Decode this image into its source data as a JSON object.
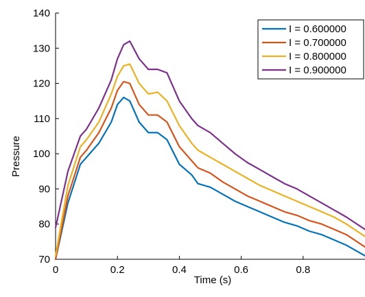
{
  "chart_data": {
    "type": "line",
    "title": "",
    "xlabel": "Time (s)",
    "ylabel": "Pressure",
    "xlim": [
      0,
      1.0
    ],
    "ylim": [
      70,
      140
    ],
    "xticks": [
      0,
      0.2,
      0.4,
      0.6,
      0.8
    ],
    "xtick_labels": [
      "0",
      "0.2",
      "0.4",
      "0.6",
      "0.8"
    ],
    "yticks": [
      70,
      80,
      90,
      100,
      110,
      120,
      130,
      140
    ],
    "ytick_labels": [
      "70",
      "80",
      "90",
      "100",
      "110",
      "120",
      "130",
      "140"
    ],
    "grid": false,
    "legend_position": "top-right",
    "series": [
      {
        "name": "I = 0.600000",
        "color": "#0072BD",
        "x": [
          0,
          0.04,
          0.08,
          0.1,
          0.14,
          0.18,
          0.2,
          0.22,
          0.24,
          0.27,
          0.3,
          0.33,
          0.36,
          0.4,
          0.44,
          0.46,
          0.5,
          0.54,
          0.58,
          0.62,
          0.66,
          0.7,
          0.74,
          0.78,
          0.82,
          0.86,
          0.9,
          0.94,
          1.0
        ],
        "y": [
          70,
          86,
          97,
          99,
          103,
          109,
          114,
          116,
          115,
          109,
          106,
          106,
          104,
          97,
          94,
          91.5,
          90.5,
          88.5,
          86.5,
          85,
          83.5,
          82,
          80.5,
          79.5,
          78,
          77,
          75.5,
          74,
          71
        ]
      },
      {
        "name": "I = 0.700000",
        "color": "#D95319",
        "x": [
          0,
          0.04,
          0.08,
          0.1,
          0.14,
          0.18,
          0.2,
          0.22,
          0.24,
          0.27,
          0.3,
          0.33,
          0.36,
          0.4,
          0.44,
          0.46,
          0.5,
          0.54,
          0.58,
          0.62,
          0.66,
          0.7,
          0.74,
          0.78,
          0.82,
          0.86,
          0.9,
          0.94,
          1.0
        ],
        "y": [
          70,
          88,
          99,
          101,
          106,
          113,
          118,
          120.5,
          120,
          114,
          111,
          111,
          109,
          102,
          98,
          96,
          94.5,
          92,
          90,
          88,
          86.5,
          85,
          83.5,
          82.5,
          81,
          80,
          78.5,
          77,
          73.5
        ]
      },
      {
        "name": "I = 0.800000",
        "color": "#EDB120",
        "x": [
          0,
          0.04,
          0.08,
          0.1,
          0.14,
          0.18,
          0.2,
          0.22,
          0.24,
          0.27,
          0.3,
          0.33,
          0.36,
          0.4,
          0.44,
          0.46,
          0.5,
          0.54,
          0.58,
          0.62,
          0.66,
          0.7,
          0.74,
          0.78,
          0.82,
          0.86,
          0.9,
          0.94,
          1.0
        ],
        "y": [
          71,
          91,
          102,
          104,
          109,
          117,
          122,
          125,
          125.5,
          120,
          117,
          117.5,
          115,
          108,
          103,
          101,
          99,
          97,
          95,
          93,
          91,
          89.5,
          88,
          86.5,
          85,
          83.5,
          82,
          80,
          76.5
        ]
      },
      {
        "name": "I = 0.900000",
        "color": "#7E2F8E",
        "x": [
          0,
          0.04,
          0.08,
          0.1,
          0.14,
          0.18,
          0.2,
          0.22,
          0.24,
          0.27,
          0.3,
          0.33,
          0.36,
          0.4,
          0.44,
          0.46,
          0.5,
          0.54,
          0.58,
          0.62,
          0.66,
          0.7,
          0.74,
          0.78,
          0.82,
          0.86,
          0.9,
          0.94,
          1.0
        ],
        "y": [
          79,
          95,
          105,
          107,
          113,
          121,
          127,
          131,
          132,
          127,
          124,
          124,
          123,
          115,
          110,
          108,
          106,
          103,
          100,
          97.5,
          95.5,
          93.5,
          91.5,
          90,
          88,
          86,
          84,
          82,
          78.5
        ]
      }
    ]
  }
}
